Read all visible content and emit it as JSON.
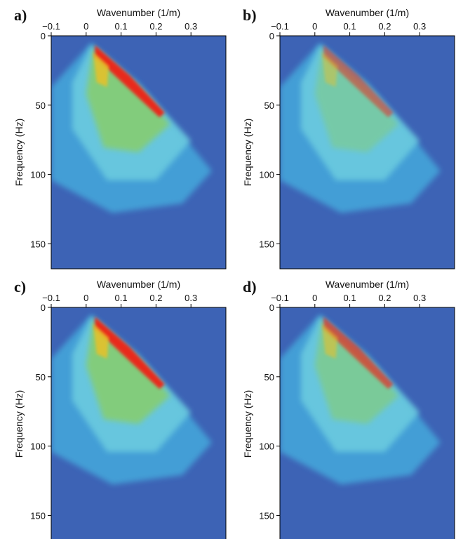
{
  "chart_data": [
    {
      "type": "heatmap",
      "panel_label": "a)",
      "x_label": "Wavenumber (1/m)",
      "y_label": "Frequency (Hz)",
      "xlim": [
        -0.1,
        0.4
      ],
      "xticks": [
        {
          "value": -0.1,
          "label": "−0.1"
        },
        0,
        0.1,
        0.2,
        0.3
      ],
      "ylim": [
        0,
        168
      ],
      "yticks": [
        0,
        50,
        100,
        150
      ]
    },
    {
      "type": "heatmap",
      "panel_label": "b)",
      "x_label": "Wavenumber (1/m)",
      "y_label": "Frequency (Hz)",
      "xlim": [
        -0.1,
        0.4
      ],
      "xticks": [
        {
          "value": -0.1,
          "label": "−0.1"
        },
        0,
        0.1,
        0.2,
        0.3
      ],
      "ylim": [
        0,
        168
      ],
      "yticks": [
        0,
        50,
        100,
        150
      ]
    },
    {
      "type": "heatmap",
      "panel_label": "c)",
      "x_label": "Wavenumber (1/m)",
      "y_label": "Frequency (Hz)",
      "xlim": [
        -0.1,
        0.4
      ],
      "xticks": [
        {
          "value": -0.1,
          "label": "−0.1"
        },
        0,
        0.1,
        0.2,
        0.3
      ],
      "ylim": [
        0,
        168
      ],
      "yticks": [
        0,
        50,
        100,
        150
      ]
    },
    {
      "type": "heatmap",
      "panel_label": "d)",
      "x_label": "Wavenumber (1/m)",
      "y_label": "Frequency (Hz)",
      "xlim": [
        -0.1,
        0.4
      ],
      "xticks": [
        {
          "value": -0.1,
          "label": "−0.1"
        },
        0,
        0.1,
        0.2,
        0.3
      ],
      "ylim": [
        0,
        168
      ],
      "yticks": [
        0,
        50,
        100,
        150
      ]
    }
  ]
}
